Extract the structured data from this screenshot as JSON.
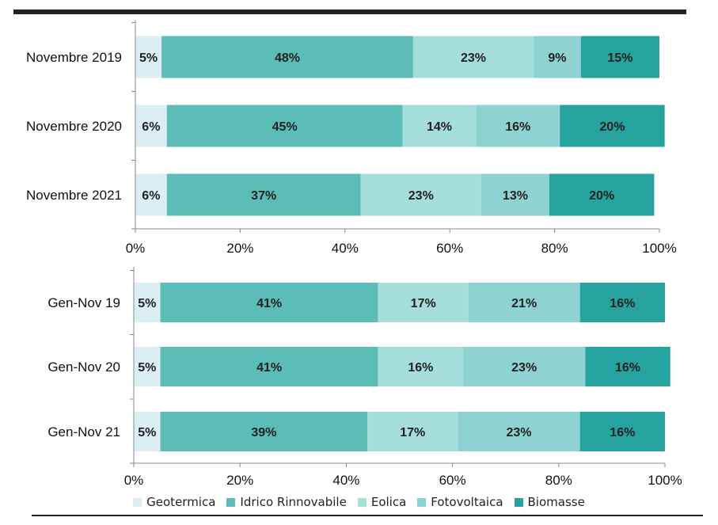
{
  "chart_data": [
    {
      "type": "bar",
      "orientation": "horizontal",
      "stacked": true,
      "title": "",
      "xlabel": "",
      "ylabel": "",
      "xlim": [
        0,
        100
      ],
      "ticks": [
        "0%",
        "20%",
        "40%",
        "60%",
        "80%",
        "100%"
      ],
      "categories": [
        "Novembre 2019",
        "Novembre 2020",
        "Novembre 2021"
      ],
      "series": [
        {
          "name": "Geotermica",
          "color": "#dbeef4",
          "values": [
            5,
            6,
            6
          ]
        },
        {
          "name": "Idrico Rinnovabile",
          "color": "#5bbcb8",
          "values": [
            48,
            45,
            37
          ]
        },
        {
          "name": "Eolica",
          "color": "#a6dedc",
          "values": [
            23,
            14,
            23
          ]
        },
        {
          "name": "Fotovoltaica",
          "color": "#8ed3d1",
          "values": [
            9,
            16,
            13
          ]
        },
        {
          "name": "Biomasse",
          "color": "#26a39e",
          "values": [
            15,
            20,
            20
          ]
        }
      ],
      "grid": false
    },
    {
      "type": "bar",
      "orientation": "horizontal",
      "stacked": true,
      "title": "",
      "xlabel": "",
      "ylabel": "",
      "xlim": [
        0,
        100
      ],
      "ticks": [
        "0%",
        "20%",
        "40%",
        "60%",
        "80%",
        "100%"
      ],
      "categories": [
        "Gen-Nov 19",
        "Gen-Nov 20",
        "Gen-Nov 21"
      ],
      "series": [
        {
          "name": "Geotermica",
          "color": "#dbeef4",
          "values": [
            5,
            5,
            5
          ]
        },
        {
          "name": "Idrico Rinnovabile",
          "color": "#5bbcb8",
          "values": [
            41,
            41,
            39
          ]
        },
        {
          "name": "Eolica",
          "color": "#a6dedc",
          "values": [
            17,
            16,
            17
          ]
        },
        {
          "name": "Fotovoltaica",
          "color": "#8ed3d1",
          "values": [
            21,
            23,
            23
          ]
        },
        {
          "name": "Biomasse",
          "color": "#26a39e",
          "values": [
            16,
            16,
            16
          ]
        }
      ],
      "grid": false
    }
  ],
  "legend": {
    "position": "bottom",
    "items": [
      {
        "label": "Geotermica",
        "color": "#dbeef4"
      },
      {
        "label": "Idrico Rinnovabile",
        "color": "#5bbcb8"
      },
      {
        "label": "Eolica",
        "color": "#a6dedc"
      },
      {
        "label": "Fotovoltaica",
        "color": "#8ed3d1"
      },
      {
        "label": "Biomasse",
        "color": "#26a39e"
      }
    ]
  }
}
